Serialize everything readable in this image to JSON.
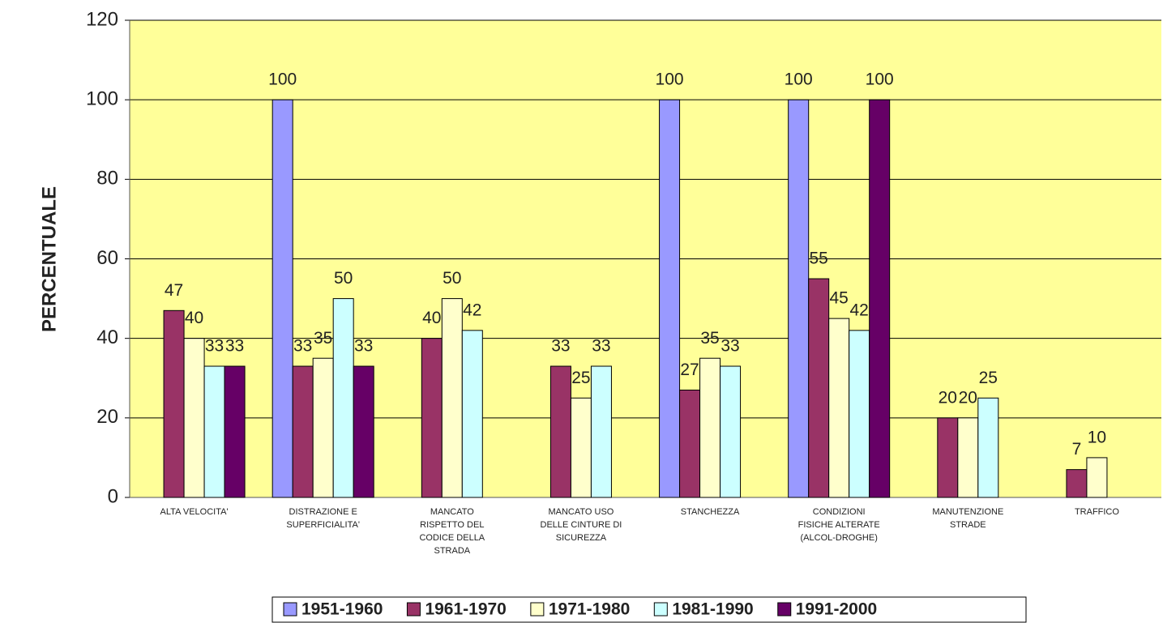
{
  "chart_data": {
    "type": "bar",
    "y_label": "PERCENTUALE",
    "categories": [
      "ALTA VELOCITA'",
      "DISTRAZIONE E\nSUPERFICIALITA'",
      "MANCATO\nRISPETTO DEL\nCODICE DELLA\nSTRADA",
      "MANCATO USO\nDELLE CINTURE DI\nSICUREZZA",
      "STANCHEZZA",
      "CONDIZIONI\nFISICHE ALTERATE\n(ALCOL-DROGHE)",
      "MANUTENZIONE\nSTRADE",
      "TRAFFICO"
    ],
    "series": [
      {
        "name": "1951-1960",
        "color": "#9999ff",
        "values": [
          null,
          100,
          null,
          null,
          100,
          100,
          null,
          null
        ]
      },
      {
        "name": "1961-1970",
        "color": "#993366",
        "values": [
          47,
          33,
          40,
          33,
          27,
          55,
          20,
          7
        ]
      },
      {
        "name": "1971-1980",
        "color": "#ffffcc",
        "values": [
          40,
          35,
          50,
          25,
          35,
          45,
          20,
          10
        ]
      },
      {
        "name": "1981-1990",
        "color": "#ccffff",
        "values": [
          33,
          50,
          42,
          33,
          33,
          42,
          25,
          null
        ]
      },
      {
        "name": "1991-2000",
        "color": "#660066",
        "values": [
          33,
          33,
          null,
          null,
          null,
          100,
          null,
          null
        ]
      }
    ],
    "ylim": [
      0,
      120
    ],
    "yticks": [
      0,
      20,
      40,
      60,
      80,
      100,
      120
    ],
    "grid": true,
    "legend": "bottom",
    "plot_background": "#ffff99"
  }
}
